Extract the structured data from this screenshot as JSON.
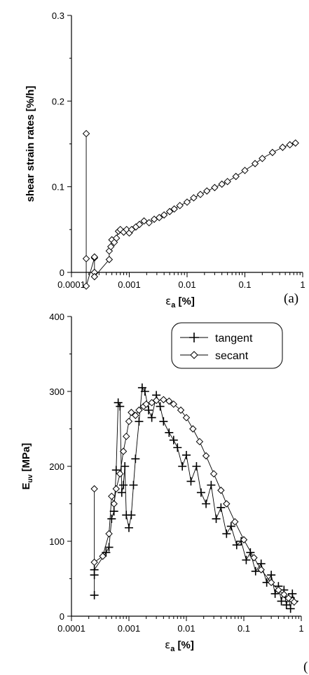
{
  "chart_data": [
    {
      "type": "scatter",
      "panel_label": "(a)",
      "xlabel_symbol": "ε",
      "xlabel_subscript": "a",
      "xlabel_unit": "[%]",
      "ylabel": "shear strain rates [%/h]",
      "xscale": "log",
      "xlim": [
        0.0001,
        1
      ],
      "ylim": [
        0,
        0.3
      ],
      "xticks": [
        "0.0001",
        "0.001",
        "0.01",
        "0.1",
        "1"
      ],
      "yticks": [
        "0",
        "0.1",
        "0.2",
        "0.3"
      ],
      "grid": false,
      "series": [
        {
          "marker": "diamond",
          "points": [
            [
              0.00018,
              0.162
            ],
            [
              0.00018,
              0.016
            ],
            [
              0.00018,
              -0.016
            ],
            [
              0.00025,
              0.017
            ],
            [
              0.00025,
              0.0
            ],
            [
              0.00025,
              0.018
            ],
            [
              0.00025,
              -0.005
            ],
            [
              0.00045,
              0.015
            ],
            [
              0.00045,
              0.025
            ],
            [
              0.00048,
              0.03
            ],
            [
              0.0005,
              0.038
            ],
            [
              0.00055,
              0.035
            ],
            [
              0.0006,
              0.04
            ],
            [
              0.00065,
              0.048
            ],
            [
              0.0007,
              0.05
            ],
            [
              0.0008,
              0.047
            ],
            [
              0.0009,
              0.05
            ],
            [
              0.001,
              0.046
            ],
            [
              0.0011,
              0.05
            ],
            [
              0.0013,
              0.053
            ],
            [
              0.0015,
              0.056
            ],
            [
              0.0018,
              0.06
            ],
            [
              0.0022,
              0.058
            ],
            [
              0.0027,
              0.062
            ],
            [
              0.0033,
              0.064
            ],
            [
              0.004,
              0.067
            ],
            [
              0.005,
              0.071
            ],
            [
              0.006,
              0.074
            ],
            [
              0.0075,
              0.078
            ],
            [
              0.01,
              0.082
            ],
            [
              0.013,
              0.087
            ],
            [
              0.017,
              0.091
            ],
            [
              0.022,
              0.095
            ],
            [
              0.03,
              0.099
            ],
            [
              0.04,
              0.103
            ],
            [
              0.05,
              0.106
            ],
            [
              0.07,
              0.112
            ],
            [
              0.1,
              0.119
            ],
            [
              0.15,
              0.127
            ],
            [
              0.2,
              0.133
            ],
            [
              0.3,
              0.14
            ],
            [
              0.45,
              0.146
            ],
            [
              0.6,
              0.149
            ],
            [
              0.75,
              0.151
            ]
          ]
        }
      ]
    },
    {
      "type": "scatter",
      "panel_label": "(",
      "xlabel_symbol": "ε",
      "xlabel_subscript": "a",
      "xlabel_unit": "[%]",
      "ylabel_main": "E",
      "ylabel_subscript": "uv",
      "ylabel_unit": "[MPa]",
      "xscale": "log",
      "xlim": [
        0.0001,
        1
      ],
      "ylim": [
        0,
        400
      ],
      "xticks": [
        "0.0001",
        "0.001",
        "0.01",
        "0.1",
        "1"
      ],
      "yticks": [
        "0",
        "100",
        "200",
        "300",
        "400"
      ],
      "grid": false,
      "legend_position": "top-right",
      "series": [
        {
          "name": "tangent",
          "marker": "plus",
          "points": [
            [
              0.00025,
              28
            ],
            [
              0.00025,
              55
            ],
            [
              0.00025,
              62
            ],
            [
              0.0004,
              85
            ],
            [
              0.00045,
              92
            ],
            [
              0.0005,
              130
            ],
            [
              0.00055,
              140
            ],
            [
              0.0006,
              195
            ],
            [
              0.00065,
              285
            ],
            [
              0.0007,
              280
            ],
            [
              0.00075,
              165
            ],
            [
              0.0008,
              175
            ],
            [
              0.00085,
              200
            ],
            [
              0.0009,
              135
            ],
            [
              0.001,
              118
            ],
            [
              0.0011,
              135
            ],
            [
              0.0012,
              175
            ],
            [
              0.0013,
              210
            ],
            [
              0.0015,
              260
            ],
            [
              0.0017,
              305
            ],
            [
              0.0019,
              300
            ],
            [
              0.0022,
              275
            ],
            [
              0.0025,
              265
            ],
            [
              0.003,
              295
            ],
            [
              0.0035,
              280
            ],
            [
              0.004,
              260
            ],
            [
              0.005,
              245
            ],
            [
              0.006,
              235
            ],
            [
              0.007,
              225
            ],
            [
              0.0085,
              200
            ],
            [
              0.01,
              215
            ],
            [
              0.012,
              180
            ],
            [
              0.015,
              200
            ],
            [
              0.018,
              165
            ],
            [
              0.022,
              150
            ],
            [
              0.027,
              175
            ],
            [
              0.033,
              130
            ],
            [
              0.04,
              145
            ],
            [
              0.05,
              110
            ],
            [
              0.06,
              120
            ],
            [
              0.075,
              95
            ],
            [
              0.09,
              100
            ],
            [
              0.11,
              75
            ],
            [
              0.13,
              85
            ],
            [
              0.16,
              60
            ],
            [
              0.2,
              70
            ],
            [
              0.25,
              45
            ],
            [
              0.3,
              55
            ],
            [
              0.35,
              30
            ],
            [
              0.4,
              40
            ],
            [
              0.45,
              20
            ],
            [
              0.5,
              35
            ],
            [
              0.55,
              15
            ],
            [
              0.6,
              25
            ],
            [
              0.65,
              10
            ],
            [
              0.7,
              30
            ],
            [
              0.75,
              20
            ]
          ]
        },
        {
          "name": "secant",
          "marker": "diamond",
          "points": [
            [
              0.00025,
              170
            ],
            [
              0.00025,
              72
            ],
            [
              0.00035,
              80
            ],
            [
              0.00045,
              110
            ],
            [
              0.0005,
              160
            ],
            [
              0.00055,
              150
            ],
            [
              0.0006,
              170
            ],
            [
              0.0007,
              190
            ],
            [
              0.0008,
              220
            ],
            [
              0.0009,
              240
            ],
            [
              0.001,
              260
            ],
            [
              0.0011,
              272
            ],
            [
              0.0013,
              268
            ],
            [
              0.0015,
              275
            ],
            [
              0.0018,
              280
            ],
            [
              0.002,
              283
            ],
            [
              0.0025,
              285
            ],
            [
              0.003,
              288
            ],
            [
              0.004,
              289
            ],
            [
              0.005,
              287
            ],
            [
              0.006,
              283
            ],
            [
              0.008,
              275
            ],
            [
              0.01,
              265
            ],
            [
              0.013,
              250
            ],
            [
              0.017,
              233
            ],
            [
              0.022,
              214
            ],
            [
              0.03,
              190
            ],
            [
              0.04,
              168
            ],
            [
              0.05,
              150
            ],
            [
              0.07,
              126
            ],
            [
              0.1,
              102
            ],
            [
              0.15,
              78
            ],
            [
              0.2,
              62
            ],
            [
              0.3,
              45
            ],
            [
              0.4,
              35
            ],
            [
              0.5,
              29
            ],
            [
              0.6,
              24
            ],
            [
              0.7,
              21
            ],
            [
              0.75,
              19
            ]
          ]
        }
      ]
    }
  ]
}
